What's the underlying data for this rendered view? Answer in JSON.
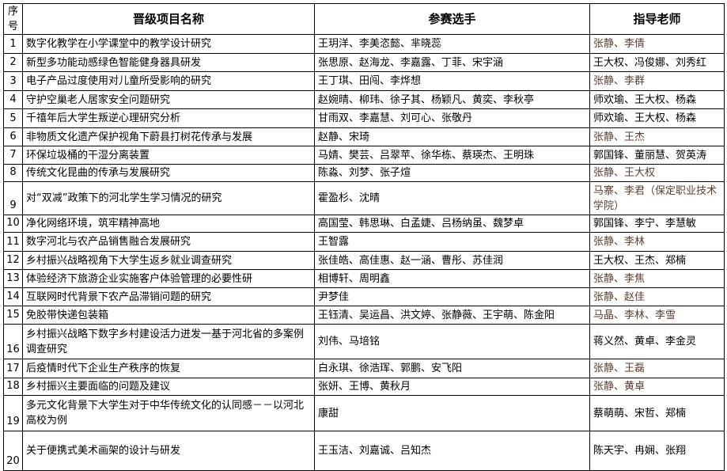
{
  "headers": {
    "no": "序号",
    "project": "晋级项目名称",
    "students": "参赛选手",
    "teachers": "指导老师"
  },
  "colors": {
    "highlight_teacher": "#5a3f33",
    "text": "#000000"
  },
  "rows": [
    {
      "no": "1",
      "project": "数字化教学在小学课堂中的教学设计研究",
      "students": "王玥洋、李美恣懿、芈晓蕊",
      "teachers": "张静、李倩",
      "highlight": true
    },
    {
      "no": "2",
      "project": "新型多功能动感绿色智能健身器具研发",
      "students": "张思原、赵海龙、李嘉露、丁菲、宋宇涵",
      "teachers": "王大权、冯俊娜、刘秀红",
      "highlight": false
    },
    {
      "no": "3",
      "project": "电子产品过度使用对儿童所受影响的研究",
      "students": "王丁琪、田闯、李烨想",
      "teachers": "张静、李群",
      "highlight": true
    },
    {
      "no": "4",
      "project": "守护空巢老人居家安全问题研究",
      "students": "赵婉晴、柳玮、徐子其、杨颖凡、黄奕、李秋亭",
      "teachers": "师欢瑜、王大权、杨森",
      "highlight": false
    },
    {
      "no": "5",
      "project": "千禧年后大学生叛逆心理研究分析",
      "students": "甘雨双、李嘉慧、刘可心、张敬丹",
      "teachers": "师欢瑜、王大权、杨森",
      "highlight": false
    },
    {
      "no": "6",
      "project": "非物质文化遗产保护视角下蔚县打树花传承与发展",
      "students": "赵静、宋琦",
      "teachers": "张静、王杰",
      "highlight": true
    },
    {
      "no": "7",
      "project": "环保垃圾桶的干湿分离装置",
      "students": "马婧、樊芸、吕翠苹、徐华栋、蔡瑛杰、王明珠",
      "teachers": "郭国锋、董丽慧、贺英涛",
      "highlight": false
    },
    {
      "no": "8",
      "project": "传统文化昆曲的传承与发展研究",
      "students": "陈淼、刘梦、张子煊",
      "teachers": "张静、王大权",
      "highlight": true
    },
    {
      "no": "9",
      "project": "对“双减”政策下的河北学生学习情况的研究",
      "students": "霍盈杉、沈晴",
      "teachers": "马寨、李君（保定职业技术学院）",
      "highlight": true
    },
    {
      "no": "10",
      "project": "净化网络环境，筑牢精神高地",
      "students": "高国莹、韩思琳、白孟婕、吕杨纳虽、魏梦卓",
      "teachers": "郭国锋、李宁、李慧敏",
      "highlight": false
    },
    {
      "no": "11",
      "project": "数字河北与农产品销售融合发展研究",
      "students": "王智露",
      "teachers": "张静、李林",
      "highlight": true
    },
    {
      "no": "12",
      "project": "乡村振兴战略视角下大学生返乡就业调查研究",
      "students": "张佳皓、高佳惠、赵一涵、曹彤、苏佳润",
      "teachers": "王大权、王杰、郑楠",
      "highlight": false
    },
    {
      "no": "13",
      "project": "体验经济下旅游企业实施客户体验管理的必要性研",
      "students": "相博轩、周明鑫",
      "teachers": "张静、李焦",
      "highlight": true
    },
    {
      "no": "14",
      "project": "互联网时代背景下农产品滞销问题的研究",
      "students": "尹梦佳",
      "teachers": "张静、赵佳",
      "highlight": true
    },
    {
      "no": "15",
      "project": "免胶带快递包装箱",
      "students": "王钰清、吴运昌、洪文婷、张静薇、王宇萌、陈金阳",
      "teachers": "马晶、李林、李雪",
      "highlight": true
    },
    {
      "no": "16",
      "project": "乡村振兴战略下数字乡村建设活力迸发一基于河北省的多案例调查研究",
      "students": "刘伟、马培铭",
      "teachers": "蒋义然、黄卓、李金灵",
      "highlight": false
    },
    {
      "no": "17",
      "project": "后疫情时代下企业生产秩序的恢复",
      "students": "白永琪、徐浩珲、郭鹏、安飞阳",
      "teachers": "张静、王磊",
      "highlight": true
    },
    {
      "no": "18",
      "project": "乡村振兴主要面临的问题及建议",
      "students": "张妍、王博、黄秋月",
      "teachers": "张静、黄卓",
      "highlight": true
    },
    {
      "no": "19",
      "project": "多元文化背景下大学生对于中华传统文化的认同感－－以河北高校为例",
      "students": "康甜",
      "teachers": "蔡萌萌、宋哲、郑楠",
      "highlight": false
    },
    {
      "no": "20",
      "project": "关于便携式美术画架的设计与研发",
      "students": "王玉洁、刘嘉诚、吕知杰",
      "teachers": "陈天宇、冉娴、张翔",
      "highlight": false
    }
  ]
}
